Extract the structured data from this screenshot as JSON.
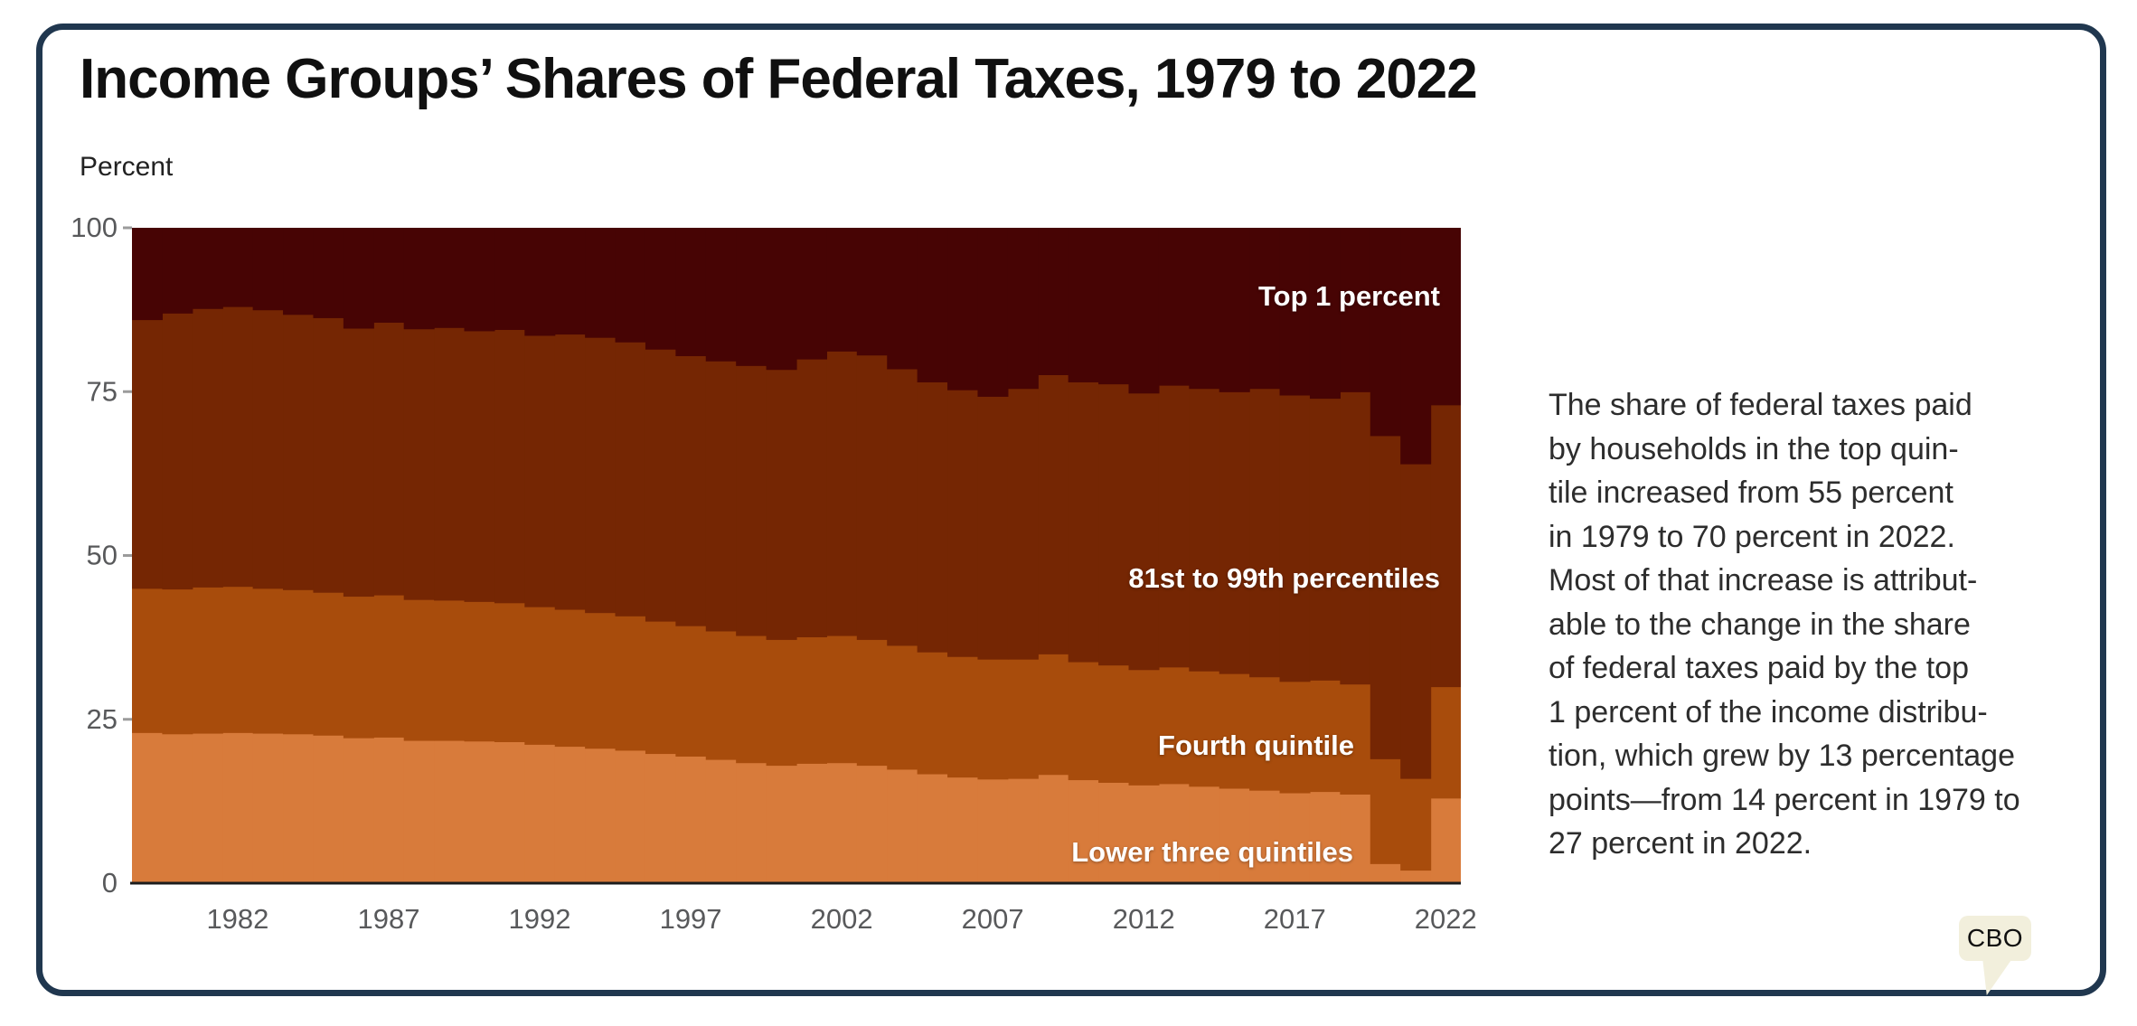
{
  "card": {
    "border_color": "#20374f",
    "badge_label": "CBO",
    "badge_bg": "#f2efdc"
  },
  "summary_text": {
    "lines": [
      "The share of federal taxes paid",
      "by households in the top quin-",
      "tile increased from 55 percent",
      "in 1979 to 70 percent in 2022.",
      "Most of that increase is attribut-",
      "able to the change in the share",
      "of federal taxes paid by the top",
      "1 percent of the income distribu-",
      "tion, which grew by 13 percentage",
      "points—from 14 percent in 1979 to",
      "27 percent in 2022."
    ]
  },
  "chart_data": {
    "type": "bar",
    "stacked": true,
    "title": "Income Groups’ Shares of Federal Taxes, 1979 to 2022",
    "ylabel": "Percent",
    "xlabel": "",
    "ylim": [
      0,
      100
    ],
    "y_ticks": [
      0,
      25,
      50,
      75,
      100
    ],
    "grid": false,
    "legend_position": "labels-inside-right",
    "years": [
      1979,
      1980,
      1981,
      1982,
      1983,
      1984,
      1985,
      1986,
      1987,
      1988,
      1989,
      1990,
      1991,
      1992,
      1993,
      1994,
      1995,
      1996,
      1997,
      1998,
      1999,
      2000,
      2001,
      2002,
      2003,
      2004,
      2005,
      2006,
      2007,
      2008,
      2009,
      2010,
      2011,
      2012,
      2013,
      2014,
      2015,
      2016,
      2017,
      2018,
      2019,
      2020,
      2021,
      2022
    ],
    "x_tick_years": [
      1982,
      1987,
      1992,
      1997,
      2002,
      2007,
      2012,
      2017,
      2022
    ],
    "axis_text_color": "#58595b",
    "axis_line_color": "#1c1c1c",
    "series": [
      {
        "name": "Lower three quintiles",
        "color": "#d87b3b",
        "values": [
          23.0,
          22.8,
          22.9,
          23.0,
          22.9,
          22.8,
          22.6,
          22.2,
          22.3,
          21.8,
          21.8,
          21.7,
          21.6,
          21.2,
          20.9,
          20.6,
          20.3,
          19.8,
          19.4,
          18.9,
          18.4,
          18.0,
          18.3,
          18.4,
          18.0,
          17.4,
          16.7,
          16.2,
          15.9,
          16.0,
          16.6,
          15.8,
          15.4,
          15.0,
          15.2,
          14.8,
          14.5,
          14.2,
          13.8,
          14.0,
          13.6,
          3.0,
          2.0,
          13.0
        ]
      },
      {
        "name": "Fourth quintile",
        "color": "#a84c0c",
        "values": [
          22.0,
          22.1,
          22.3,
          22.3,
          22.1,
          22.0,
          21.8,
          21.6,
          21.7,
          21.5,
          21.4,
          21.3,
          21.2,
          21.0,
          20.9,
          20.7,
          20.5,
          20.2,
          19.9,
          19.6,
          19.4,
          19.2,
          19.3,
          19.4,
          19.2,
          18.9,
          18.6,
          18.4,
          18.3,
          18.2,
          18.4,
          18.0,
          17.9,
          17.6,
          17.8,
          17.6,
          17.5,
          17.3,
          17.0,
          17.0,
          16.8,
          16.0,
          14.0,
          17.0
        ]
      },
      {
        "name": "81st to 99th percentiles",
        "color": "#752603",
        "values": [
          41.0,
          42.1,
          42.5,
          42.7,
          42.5,
          42.0,
          41.9,
          40.9,
          41.6,
          41.3,
          41.6,
          41.3,
          41.7,
          41.4,
          42.0,
          42.0,
          41.8,
          41.5,
          41.2,
          41.2,
          41.2,
          41.2,
          42.4,
          43.4,
          43.4,
          42.2,
          41.2,
          40.7,
          40.1,
          41.3,
          42.6,
          42.7,
          42.9,
          42.2,
          43.0,
          43.1,
          43.0,
          44.0,
          43.7,
          43.0,
          44.6,
          49.3,
          48.0,
          43.0
        ]
      },
      {
        "name": "Top 1 percent",
        "color": "#470404",
        "values": [
          14.0,
          13.0,
          12.3,
          12.0,
          12.5,
          13.2,
          13.7,
          15.3,
          14.4,
          15.4,
          15.2,
          15.7,
          15.5,
          16.4,
          16.2,
          16.7,
          17.4,
          18.5,
          19.5,
          20.3,
          21.0,
          21.6,
          20.0,
          18.8,
          19.4,
          21.5,
          23.5,
          24.7,
          25.7,
          24.5,
          22.4,
          23.5,
          23.8,
          25.2,
          24.0,
          24.5,
          25.0,
          24.5,
          25.5,
          26.0,
          25.0,
          31.7,
          36.0,
          27.0
        ]
      }
    ]
  }
}
